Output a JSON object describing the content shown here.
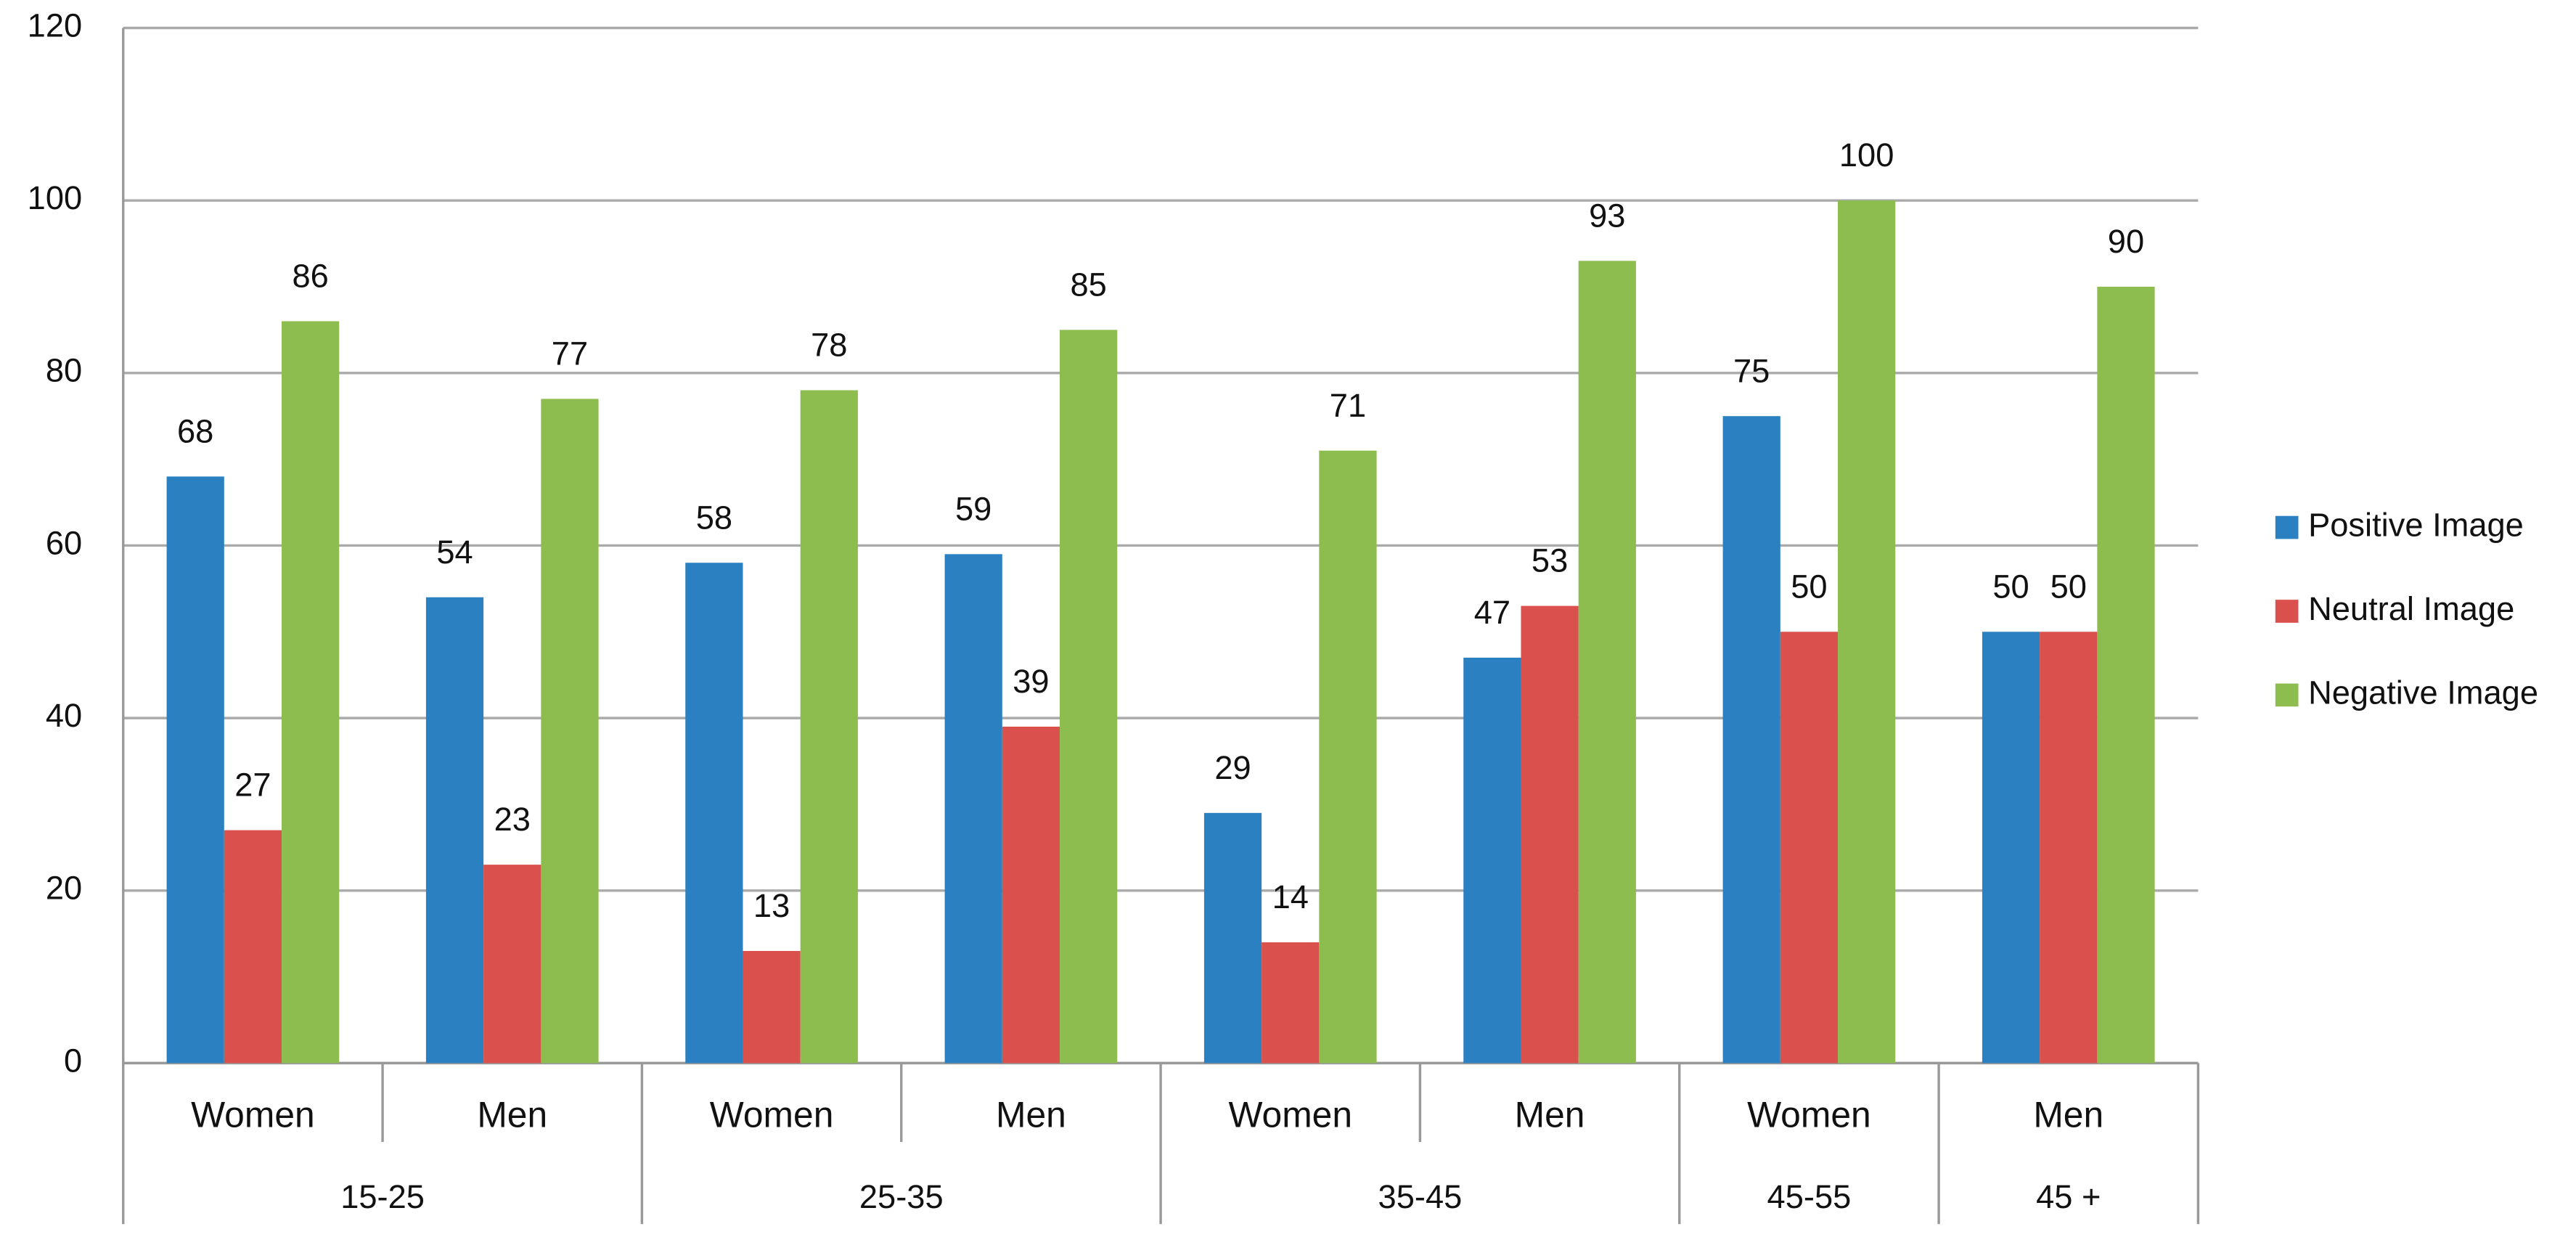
{
  "chart_data": {
    "type": "bar",
    "groups": [
      {
        "name": "15-25",
        "categories": [
          "Women",
          "Men"
        ]
      },
      {
        "name": "25-35",
        "categories": [
          "Women",
          "Men"
        ]
      },
      {
        "name": "35-45",
        "categories": [
          "Women",
          "Men"
        ]
      },
      {
        "name": "45-55",
        "categories": [
          "Women"
        ]
      },
      {
        "name": "45 +",
        "categories": [
          "Men"
        ]
      }
    ],
    "series": [
      {
        "name": "Positive Image",
        "color": "#2a80c0",
        "values": [
          68,
          54,
          58,
          59,
          29,
          47,
          75,
          50
        ]
      },
      {
        "name": "Neutral Image",
        "color": "#d9504d",
        "values": [
          27,
          23,
          13,
          39,
          14,
          53,
          50,
          50
        ]
      },
      {
        "name": "Negative Image",
        "color": "#8dbc4f",
        "values": [
          86,
          77,
          78,
          85,
          71,
          93,
          100,
          90
        ]
      }
    ],
    "ylim": [
      0,
      120
    ],
    "yticks": [
      0,
      20,
      40,
      60,
      80,
      100,
      120
    ],
    "grid": true,
    "legend": "right"
  }
}
